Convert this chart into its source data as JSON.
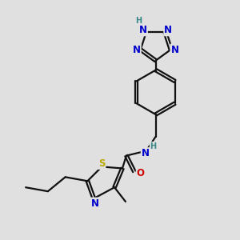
{
  "background_color": "#e0e0e0",
  "bond_color": "#111111",
  "bond_width": 1.6,
  "dbo": 0.018,
  "atom_colors": {
    "N": "#0000cc",
    "S": "#bbaa00",
    "O": "#cc0000",
    "H": "#3a8888",
    "C": "#111111"
  },
  "afs": 8.5
}
